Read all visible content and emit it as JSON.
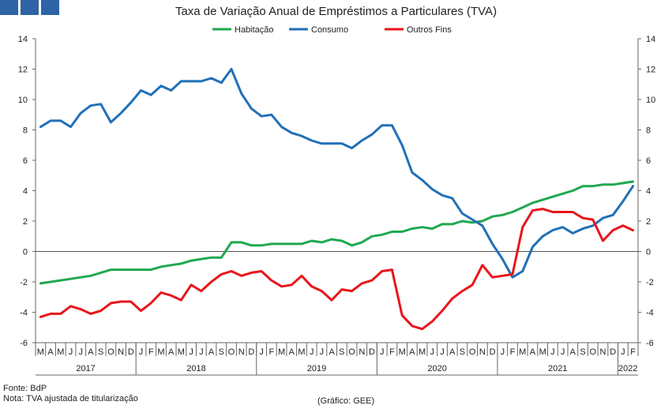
{
  "header": {
    "logo_colors": [
      "#2e63a5",
      "#2e63a5",
      "#2e63a5"
    ],
    "title": "Taxa de Variação Anual de Empréstimos a Particulares (TVA)"
  },
  "footer": {
    "source": "Fonte: BdP",
    "note": "Nota: TVA ajustada de titularização",
    "credit": "(Gráfico: GEE)"
  },
  "chart_data": {
    "type": "line",
    "title": "Taxa de Variação Anual de Empréstimos a Particulares (TVA)",
    "ylim": [
      -6,
      14
    ],
    "yticks": [
      -6,
      -4,
      -2,
      0,
      2,
      4,
      6,
      8,
      10,
      12,
      14
    ],
    "grid": false,
    "legend_position": "top-center",
    "categories": [
      "M",
      "A",
      "M",
      "J",
      "J",
      "A",
      "S",
      "O",
      "N",
      "D",
      "J",
      "F",
      "M",
      "A",
      "M",
      "J",
      "J",
      "A",
      "S",
      "O",
      "N",
      "D",
      "J",
      "F",
      "M",
      "A",
      "M",
      "J",
      "J",
      "A",
      "S",
      "O",
      "N",
      "D",
      "J",
      "F",
      "M",
      "A",
      "M",
      "J",
      "J",
      "A",
      "S",
      "O",
      "N",
      "D",
      "J",
      "F",
      "M",
      "A",
      "M",
      "J",
      "J",
      "A",
      "S",
      "O",
      "N",
      "D",
      "J",
      "F"
    ],
    "years": [
      {
        "label": "2017",
        "start": 0,
        "count": 10
      },
      {
        "label": "2018",
        "start": 10,
        "count": 12
      },
      {
        "label": "2019",
        "start": 22,
        "count": 12
      },
      {
        "label": "2020",
        "start": 34,
        "count": 12
      },
      {
        "label": "2021",
        "start": 46,
        "count": 12
      },
      {
        "label": "2022",
        "start": 58,
        "count": 2
      }
    ],
    "series": [
      {
        "name": "Habitação",
        "color": "#1fa84f",
        "values": [
          -2.1,
          -2.0,
          -1.9,
          -1.8,
          -1.7,
          -1.6,
          -1.4,
          -1.2,
          -1.2,
          -1.2,
          -1.2,
          -1.2,
          -1.0,
          -0.9,
          -0.8,
          -0.6,
          -0.5,
          -0.4,
          -0.4,
          0.6,
          0.6,
          0.4,
          0.4,
          0.5,
          0.5,
          0.5,
          0.5,
          0.7,
          0.6,
          0.8,
          0.7,
          0.4,
          0.6,
          1.0,
          1.1,
          1.3,
          1.3,
          1.5,
          1.6,
          1.5,
          1.8,
          1.8,
          2.0,
          1.9,
          2.0,
          2.3,
          2.4,
          2.6,
          2.9,
          3.2,
          3.4,
          3.6,
          3.8,
          4.0,
          4.3,
          4.3,
          4.4,
          4.4,
          4.5,
          4.6
        ]
      },
      {
        "name": "Consumo",
        "color": "#2170b8",
        "values": [
          8.2,
          8.6,
          8.6,
          8.2,
          9.1,
          9.6,
          9.7,
          8.5,
          9.1,
          9.8,
          10.6,
          10.3,
          10.9,
          10.6,
          11.2,
          11.2,
          11.2,
          11.4,
          11.1,
          12.0,
          10.4,
          9.4,
          8.9,
          9.0,
          8.2,
          7.8,
          7.6,
          7.3,
          7.1,
          7.1,
          7.1,
          6.8,
          7.3,
          7.7,
          8.3,
          8.3,
          7.0,
          5.2,
          4.7,
          4.1,
          3.7,
          3.5,
          2.5,
          2.1,
          1.7,
          0.5,
          -0.5,
          -1.7,
          -1.3,
          0.3,
          1.0,
          1.4,
          1.6,
          1.2,
          1.5,
          1.7,
          2.2,
          2.4,
          3.3,
          4.3
        ]
      },
      {
        "name": "Outros Fins",
        "color": "#e8161b",
        "values": [
          -4.3,
          -4.1,
          -4.1,
          -3.6,
          -3.8,
          -4.1,
          -3.9,
          -3.4,
          -3.3,
          -3.3,
          -3.9,
          -3.4,
          -2.7,
          -2.9,
          -3.2,
          -2.2,
          -2.6,
          -2.0,
          -1.5,
          -1.3,
          -1.6,
          -1.4,
          -1.3,
          -1.9,
          -2.3,
          -2.2,
          -1.6,
          -2.3,
          -2.6,
          -3.2,
          -2.5,
          -2.6,
          -2.1,
          -1.9,
          -1.3,
          -1.2,
          -4.2,
          -4.9,
          -5.1,
          -4.6,
          -3.9,
          -3.1,
          -2.6,
          -2.2,
          -0.9,
          -1.7,
          -1.6,
          -1.5,
          1.6,
          2.7,
          2.8,
          2.6,
          2.6,
          2.6,
          2.2,
          2.1,
          0.7,
          1.4,
          1.7,
          1.4
        ]
      }
    ]
  }
}
